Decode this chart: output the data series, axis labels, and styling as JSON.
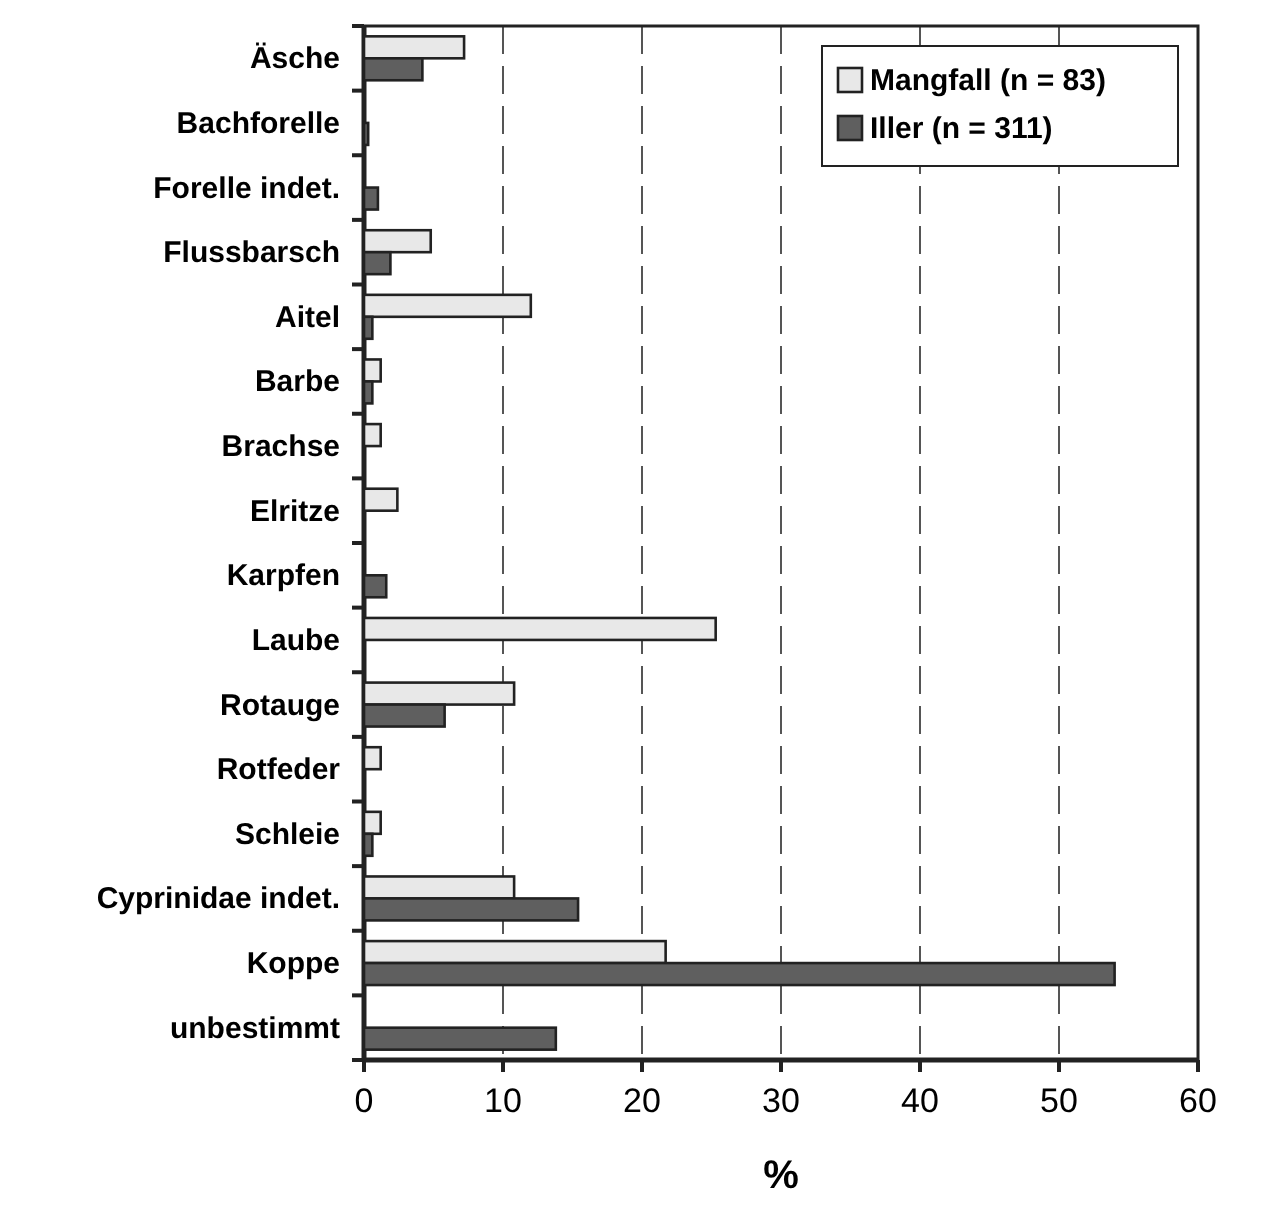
{
  "chart_data": {
    "type": "bar",
    "orientation": "horizontal",
    "xlabel": "%",
    "categories": [
      "Äsche",
      "Bachforelle",
      "Forelle indet.",
      "Flussbarsch",
      "Aitel",
      "Barbe",
      "Brachse",
      "Elritze",
      "Karpfen",
      "Laube",
      "Rotauge",
      "Rotfeder",
      "Schleie",
      "Cyprinidae indet.",
      "Koppe",
      "unbestimmt"
    ],
    "series": [
      {
        "name": "Mangfall (n = 83)",
        "color": "#e8e8e8",
        "values": [
          7.2,
          0,
          0,
          4.8,
          12.0,
          1.2,
          1.2,
          2.4,
          0,
          25.3,
          10.8,
          1.2,
          1.2,
          10.8,
          21.7,
          0
        ]
      },
      {
        "name": "Iller (n = 311)",
        "color": "#5f5f5f",
        "values": [
          4.2,
          0.3,
          1.0,
          1.9,
          0.6,
          0.6,
          0,
          0,
          1.6,
          0,
          5.8,
          0,
          0.6,
          15.4,
          54.0,
          13.8
        ]
      }
    ],
    "xlim": [
      0,
      60
    ],
    "xticks": [
      0,
      10,
      20,
      30,
      40,
      50,
      60
    ],
    "grid": "x",
    "legend": "top right"
  }
}
